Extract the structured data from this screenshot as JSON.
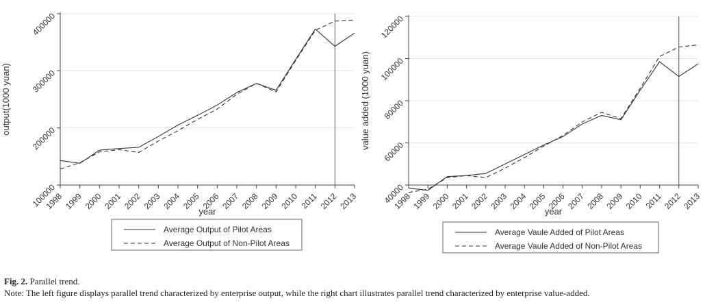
{
  "chart_data": [
    {
      "type": "line",
      "x": [
        1998,
        1999,
        2000,
        2001,
        2002,
        2003,
        2004,
        2005,
        2006,
        2007,
        2008,
        2009,
        2010,
        2011,
        2012,
        2013
      ],
      "xlabel": "year",
      "ylabel": "output(1000 yuan)",
      "ylim": [
        100000,
        400000
      ],
      "yticks": [
        100000,
        200000,
        300000,
        400000
      ],
      "vline": 2012,
      "legend_position": "bottom",
      "series": [
        {
          "name": "Average Output of Pilot Areas",
          "style": "solid",
          "values": [
            143000,
            138000,
            161000,
            164000,
            166000,
            185000,
            205000,
            222000,
            240000,
            262000,
            278000,
            266000,
            320000,
            373000,
            343000,
            366000
          ]
        },
        {
          "name": "Average Output of Non-Pilot Areas",
          "style": "dashed",
          "values": [
            128000,
            139000,
            158000,
            162000,
            157000,
            177000,
            195000,
            215000,
            233000,
            259000,
            278000,
            263000,
            318000,
            371000,
            387000,
            389000
          ]
        }
      ]
    },
    {
      "type": "line",
      "x": [
        1998,
        1999,
        2000,
        2001,
        2002,
        2003,
        2004,
        2005,
        2006,
        2007,
        2008,
        2009,
        2010,
        2011,
        2012,
        2013
      ],
      "xlabel": "year",
      "ylabel": "value added (1000 yuan)",
      "ylim": [
        40000,
        120000
      ],
      "yticks": [
        40000,
        60000,
        80000,
        100000,
        120000
      ],
      "vline": 2012,
      "legend_position": "bottom",
      "series": [
        {
          "name": "Average Vaule Added of Pilot Areas",
          "style": "solid",
          "values": [
            38500,
            37500,
            44000,
            44500,
            45500,
            50000,
            54500,
            59000,
            63000,
            69000,
            73000,
            71000,
            85000,
            98500,
            91500,
            97500
          ]
        },
        {
          "name": "Average Vaule Added of Non-Pilot Areas",
          "style": "dashed",
          "values": [
            36500,
            38000,
            43500,
            44500,
            43500,
            48000,
            53000,
            58500,
            63500,
            70000,
            74500,
            71500,
            86000,
            101000,
            105500,
            106500
          ]
        }
      ]
    }
  ],
  "caption": {
    "label": "Fig. 2.",
    "title": "Parallel trend.",
    "note": "Note: The left figure displays parallel trend characterized by enterprise output, while the right chart illustrates parallel trend characterized by enterprise value-added."
  }
}
